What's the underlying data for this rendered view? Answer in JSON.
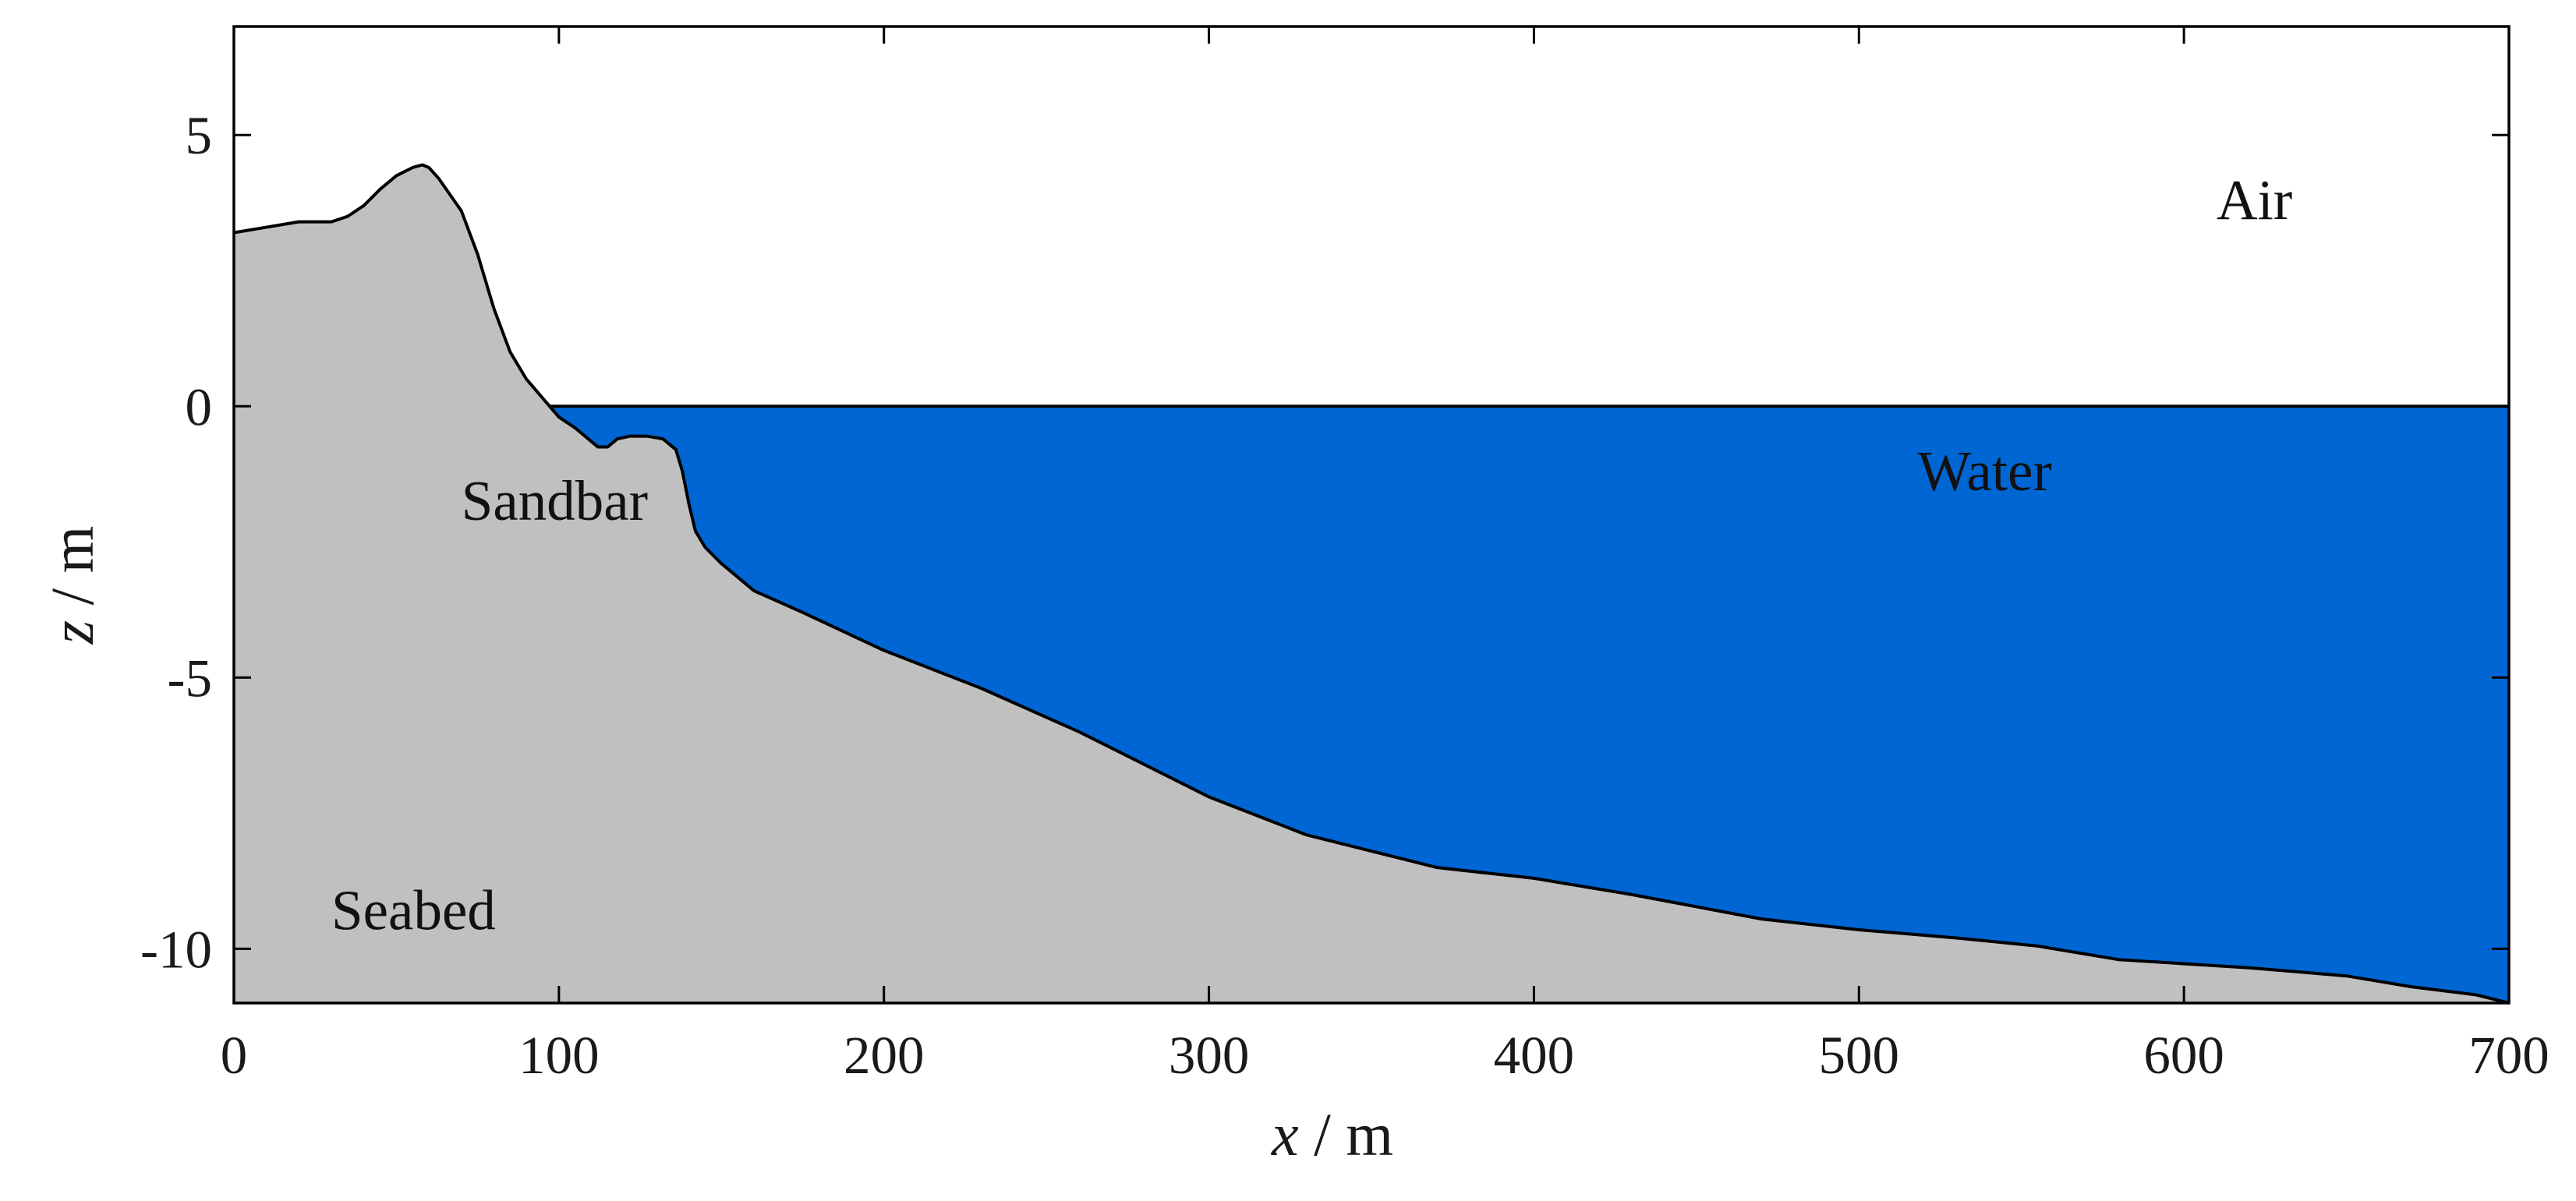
{
  "chart_data": {
    "type": "area",
    "title": "",
    "xlabel": {
      "var": "x",
      "unit": "m"
    },
    "ylabel": {
      "var": "z",
      "unit": "m"
    },
    "xlim": [
      0,
      700
    ],
    "ylim": [
      -11,
      7
    ],
    "xticks": [
      0,
      100,
      200,
      300,
      400,
      500,
      600,
      700
    ],
    "xtick_labels": [
      "0",
      "100",
      "200",
      "300",
      "400",
      "500",
      "600",
      "700"
    ],
    "yticks": [
      5,
      0,
      -5,
      -10
    ],
    "ytick_labels": [
      "5",
      "0",
      "-5",
      "-10"
    ],
    "grid": false,
    "colors": {
      "seabed": "#c0c0c0",
      "water": "#0066d4",
      "air": "#ffffff",
      "outline": "#000000"
    },
    "water_level": 0,
    "series": [
      {
        "name": "Seabed",
        "x": [
          0,
          10,
          20,
          30,
          35,
          40,
          45,
          50,
          55,
          58,
          60,
          63,
          70,
          75,
          80,
          85,
          90,
          95,
          100,
          105,
          108,
          112,
          115,
          118,
          122,
          127,
          132,
          136,
          138,
          140,
          142,
          145,
          150,
          160,
          175,
          200,
          230,
          260,
          300,
          330,
          350,
          370,
          400,
          430,
          470,
          500,
          530,
          555,
          580,
          620,
          650,
          670,
          690,
          700
        ],
        "y": [
          3.2,
          3.3,
          3.4,
          3.4,
          3.5,
          3.7,
          4.0,
          4.25,
          4.4,
          4.45,
          4.4,
          4.2,
          3.6,
          2.8,
          1.8,
          1.0,
          0.5,
          0.15,
          -0.2,
          -0.4,
          -0.55,
          -0.75,
          -0.75,
          -0.6,
          -0.55,
          -0.55,
          -0.6,
          -0.8,
          -1.2,
          -1.8,
          -2.3,
          -2.6,
          -2.9,
          -3.4,
          -3.8,
          -4.5,
          -5.2,
          -6.0,
          -7.2,
          -7.9,
          -8.2,
          -8.5,
          -8.7,
          -9.0,
          -9.45,
          -9.65,
          -9.8,
          -9.95,
          -10.2,
          -10.35,
          -10.5,
          -10.7,
          -10.85,
          -11.0
        ]
      }
    ],
    "annotations": [
      {
        "text": "Air",
        "x": 610,
        "y": 3.8
      },
      {
        "text": "Water",
        "x": 518,
        "y": -1.2
      },
      {
        "text": "Sandbar",
        "x": 70,
        "y": -1.75
      },
      {
        "text": "Seabed",
        "x": 30,
        "y": -9.3
      }
    ]
  }
}
